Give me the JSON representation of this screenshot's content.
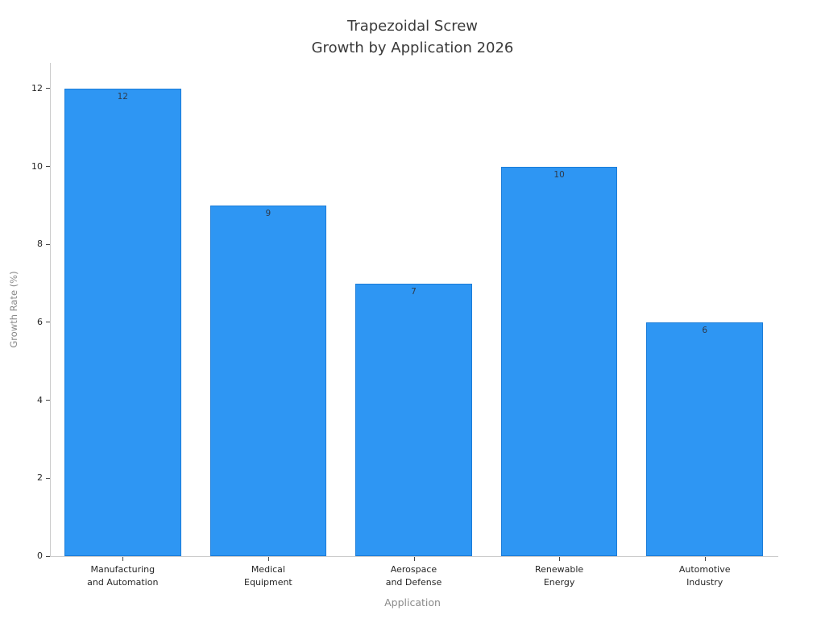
{
  "chart_data": {
    "type": "bar",
    "title": "Trapezoidal Screw\nGrowth by Application 2026",
    "xlabel": "Application",
    "ylabel": "Growth Rate (%)",
    "categories": [
      "Manufacturing\nand Automation",
      "Medical\nEquipment",
      "Aerospace\nand Defense",
      "Renewable\nEnergy",
      "Automotive\nIndustry"
    ],
    "values": [
      12,
      9,
      7,
      10,
      6
    ],
    "value_labels": [
      "12",
      "9",
      "7",
      "10",
      "6"
    ],
    "yticks": [
      "0",
      "2",
      "4",
      "6",
      "8",
      "10",
      "12"
    ],
    "ylim": [
      0,
      12.66
    ],
    "grid": false,
    "legend": null,
    "colors": {
      "bar_fill": "#2E96F3",
      "bar_edge": "#1B7CD8",
      "axis_line": "#cccccc",
      "tick_mark": "#444444",
      "tick_label": "#262626",
      "value_label": "#2E3B4C",
      "axis_title": "#8a8a8a",
      "title": "#3a3a3a"
    }
  }
}
